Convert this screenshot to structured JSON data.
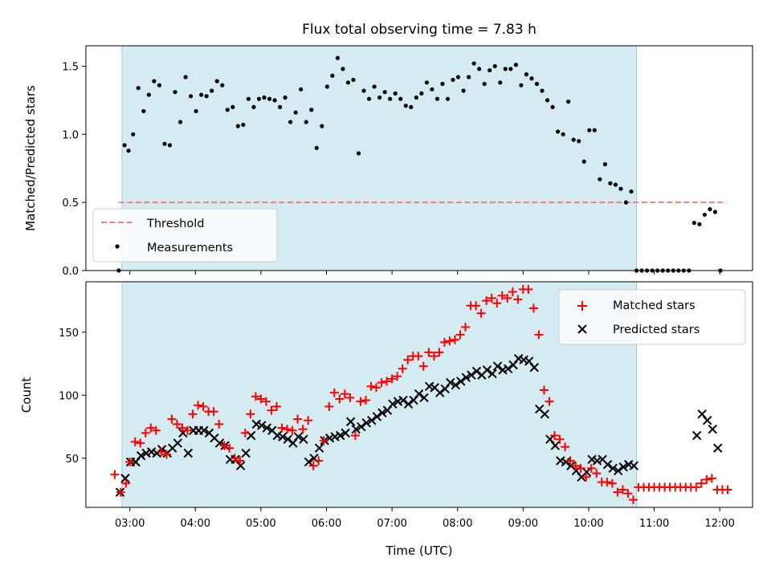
{
  "chart_data": [
    {
      "type": "scatter",
      "title": "Flux total observing time = 7.83 h",
      "ylabel": "Matched/Predicted stars",
      "xlabel": "",
      "ylim": [
        0,
        1.65
      ],
      "yticks": [
        0.0,
        0.5,
        1.0,
        1.5
      ],
      "ytick_labels": [
        "0.0",
        "0.5",
        "1.0",
        "1.5"
      ],
      "xlim": [
        2.33,
        12.5
      ],
      "xticks": [
        3,
        4,
        5,
        6,
        7,
        8,
        9,
        10,
        11,
        12
      ],
      "shaded_span": [
        2.88,
        10.73
      ],
      "threshold": {
        "name": "Threshold",
        "y": 0.5,
        "x": [
          2.83,
          12.1
        ],
        "color": "#f08080"
      },
      "legend": {
        "placement": "lower-left",
        "entries": [
          "Threshold",
          "Measurements"
        ]
      },
      "series": [
        {
          "name": "Measurements",
          "color": "#000000",
          "x": [
            2.83,
            2.92,
            2.98,
            3.05,
            3.13,
            3.21,
            3.29,
            3.37,
            3.45,
            3.53,
            3.61,
            3.69,
            3.77,
            3.85,
            3.93,
            4.01,
            4.09,
            4.17,
            4.25,
            4.33,
            4.41,
            4.49,
            4.57,
            4.65,
            4.73,
            4.81,
            4.89,
            4.97,
            5.05,
            5.13,
            5.21,
            5.29,
            5.37,
            5.45,
            5.53,
            5.61,
            5.69,
            5.77,
            5.85,
            5.93,
            6.01,
            6.09,
            6.17,
            6.25,
            6.33,
            6.41,
            6.49,
            6.57,
            6.65,
            6.73,
            6.81,
            6.89,
            6.97,
            7.05,
            7.13,
            7.21,
            7.29,
            7.37,
            7.45,
            7.53,
            7.61,
            7.69,
            7.77,
            7.85,
            7.93,
            8.01,
            8.09,
            8.17,
            8.25,
            8.33,
            8.41,
            8.49,
            8.57,
            8.65,
            8.73,
            8.81,
            8.89,
            8.97,
            9.05,
            9.13,
            9.21,
            9.29,
            9.37,
            9.45,
            9.53,
            9.61,
            9.69,
            9.77,
            9.85,
            9.93,
            10.01,
            10.09,
            10.17,
            10.25,
            10.33,
            10.41,
            10.49,
            10.57,
            10.65,
            10.73,
            10.81,
            10.89,
            10.97,
            11.05,
            11.13,
            11.21,
            11.29,
            11.37,
            11.45,
            11.53,
            11.61,
            11.69,
            11.77,
            11.85,
            11.93,
            12.01
          ],
          "y": [
            0.0,
            0.92,
            0.88,
            1.0,
            1.34,
            1.17,
            1.29,
            1.39,
            1.36,
            0.93,
            0.92,
            1.31,
            1.09,
            1.42,
            1.28,
            1.17,
            1.29,
            1.28,
            1.32,
            1.39,
            1.36,
            1.18,
            1.2,
            1.06,
            1.07,
            1.26,
            1.2,
            1.26,
            1.27,
            1.26,
            1.25,
            1.2,
            1.27,
            1.09,
            1.16,
            1.33,
            1.09,
            1.18,
            0.9,
            1.06,
            1.35,
            1.43,
            1.56,
            1.48,
            1.38,
            1.4,
            0.86,
            1.32,
            1.26,
            1.35,
            1.27,
            1.31,
            1.26,
            1.3,
            1.26,
            1.21,
            1.2,
            1.27,
            1.3,
            1.38,
            1.33,
            1.26,
            1.37,
            1.26,
            1.4,
            1.42,
            1.32,
            1.42,
            1.52,
            1.48,
            1.37,
            1.47,
            1.5,
            1.38,
            1.48,
            1.48,
            1.51,
            1.36,
            1.44,
            1.41,
            1.37,
            1.32,
            1.25,
            1.2,
            1.02,
            1.0,
            1.24,
            0.96,
            0.95,
            0.8,
            1.03,
            1.03,
            0.67,
            0.78,
            0.64,
            0.63,
            0.6,
            0.5,
            0.58,
            0.0,
            0.0,
            0.0,
            0.0,
            0.0,
            0.0,
            0.0,
            0.0,
            0.0,
            0.0,
            0.0,
            0.35,
            0.34,
            0.41,
            0.45,
            0.43,
            0.0
          ]
        }
      ]
    },
    {
      "type": "scatter",
      "title": "",
      "xlabel": "Time (UTC)",
      "ylabel": "Count",
      "ylim": [
        11,
        190
      ],
      "yticks": [
        50,
        100,
        150
      ],
      "ytick_labels": [
        "50",
        "100",
        "150"
      ],
      "xlim": [
        2.33,
        12.5
      ],
      "xticks": [
        3,
        4,
        5,
        6,
        7,
        8,
        9,
        10,
        11,
        12
      ],
      "xtick_labels": [
        "03:00",
        "04:00",
        "05:00",
        "06:00",
        "07:00",
        "08:00",
        "09:00",
        "10:00",
        "11:00",
        "12:00"
      ],
      "shaded_span": [
        2.88,
        10.73
      ],
      "legend": {
        "placement": "top-right",
        "entries": [
          "Matched stars",
          "Predicted stars"
        ]
      },
      "series": [
        {
          "name": "Matched stars",
          "marker": "+",
          "color": "#ff0000",
          "x": [
            2.77,
            2.86,
            2.94,
            3.0,
            3.08,
            3.16,
            3.24,
            3.32,
            3.4,
            3.48,
            3.56,
            3.64,
            3.72,
            3.8,
            3.88,
            3.96,
            4.04,
            4.12,
            4.2,
            4.28,
            4.36,
            4.44,
            4.52,
            4.6,
            4.68,
            4.76,
            4.84,
            4.92,
            5.0,
            5.08,
            5.16,
            5.24,
            5.32,
            5.4,
            5.48,
            5.56,
            5.64,
            5.72,
            5.8,
            5.88,
            5.96,
            6.04,
            6.12,
            6.2,
            6.28,
            6.36,
            6.44,
            6.52,
            6.6,
            6.68,
            6.76,
            6.84,
            6.92,
            7.0,
            7.08,
            7.16,
            7.24,
            7.32,
            7.4,
            7.48,
            7.56,
            7.64,
            7.72,
            7.8,
            7.88,
            7.96,
            8.04,
            8.12,
            8.2,
            8.28,
            8.36,
            8.44,
            8.52,
            8.6,
            8.68,
            8.76,
            8.84,
            8.92,
            9.0,
            9.08,
            9.16,
            9.24,
            9.32,
            9.4,
            9.48,
            9.56,
            9.64,
            9.72,
            9.8,
            9.88,
            9.96,
            10.04,
            10.12,
            10.2,
            10.28,
            10.36,
            10.44,
            10.52,
            10.6,
            10.68,
            10.76,
            10.84,
            10.92,
            11.0,
            11.08,
            11.16,
            11.24,
            11.32,
            11.4,
            11.48,
            11.56,
            11.64,
            11.72,
            11.8,
            11.88,
            11.96,
            12.04,
            12.12
          ],
          "y": [
            37,
            23,
            30,
            47,
            63,
            62,
            70,
            74,
            72,
            55,
            53,
            81,
            77,
            74,
            72,
            85,
            92,
            91,
            87,
            87,
            77,
            60,
            58,
            50,
            48,
            70,
            85,
            99,
            97,
            95,
            88,
            91,
            74,
            73,
            72,
            81,
            73,
            80,
            44,
            48,
            64,
            91,
            102,
            97,
            101,
            98,
            68,
            95,
            96,
            107,
            106,
            110,
            111,
            113,
            115,
            121,
            128,
            131,
            131,
            123,
            134,
            131,
            134,
            142,
            143,
            144,
            148,
            154,
            171,
            171,
            165,
            175,
            177,
            173,
            179,
            177,
            182,
            176,
            184,
            184,
            169,
            148,
            104,
            95,
            68,
            65,
            59,
            48,
            44,
            42,
            35,
            42,
            38,
            31,
            31,
            30,
            23,
            25,
            22,
            17,
            27,
            27,
            27,
            27,
            27,
            27,
            27,
            27,
            27,
            27,
            27,
            27,
            30,
            33,
            34,
            25,
            25,
            25
          ]
        },
        {
          "name": "Predicted stars",
          "marker": "x",
          "color": "#000000",
          "x": [
            2.85,
            2.93,
            3.01,
            3.09,
            3.17,
            3.25,
            3.33,
            3.41,
            3.49,
            3.57,
            3.65,
            3.73,
            3.81,
            3.89,
            3.97,
            4.05,
            4.13,
            4.21,
            4.29,
            4.37,
            4.45,
            4.53,
            4.61,
            4.69,
            4.77,
            4.85,
            4.93,
            5.01,
            5.09,
            5.17,
            5.25,
            5.33,
            5.41,
            5.49,
            5.57,
            5.65,
            5.73,
            5.81,
            5.89,
            5.97,
            6.05,
            6.13,
            6.21,
            6.29,
            6.37,
            6.45,
            6.53,
            6.61,
            6.69,
            6.77,
            6.85,
            6.93,
            7.01,
            7.09,
            7.17,
            7.25,
            7.33,
            7.41,
            7.49,
            7.57,
            7.65,
            7.73,
            7.81,
            7.89,
            7.97,
            8.05,
            8.13,
            8.21,
            8.29,
            8.37,
            8.45,
            8.53,
            8.61,
            8.69,
            8.77,
            8.85,
            8.93,
            9.01,
            9.09,
            9.17,
            9.25,
            9.33,
            9.41,
            9.49,
            9.57,
            9.65,
            9.73,
            9.81,
            9.89,
            9.97,
            10.05,
            10.13,
            10.21,
            10.29,
            10.37,
            10.45,
            10.53,
            10.61,
            10.69,
            11.65,
            11.73,
            11.81,
            11.89,
            11.97
          ],
          "y": [
            23,
            34,
            47,
            47,
            52,
            54,
            55,
            54,
            57,
            54,
            58,
            62,
            70,
            54,
            72,
            72,
            72,
            70,
            66,
            62,
            60,
            49,
            49,
            44,
            54,
            68,
            77,
            76,
            74,
            72,
            68,
            67,
            65,
            62,
            67,
            65,
            47,
            50,
            58,
            64,
            66,
            67,
            68,
            70,
            79,
            73,
            75,
            78,
            80,
            83,
            86,
            88,
            93,
            95,
            96,
            93,
            96,
            101,
            98,
            107,
            106,
            102,
            105,
            110,
            108,
            111,
            114,
            116,
            119,
            116,
            120,
            117,
            123,
            120,
            121,
            124,
            129,
            128,
            127,
            122,
            89,
            85,
            65,
            60,
            48,
            47,
            44,
            40,
            35,
            39,
            49,
            48,
            49,
            45,
            42,
            40,
            43,
            45,
            44,
            68,
            85,
            80,
            73,
            58
          ]
        }
      ]
    }
  ]
}
